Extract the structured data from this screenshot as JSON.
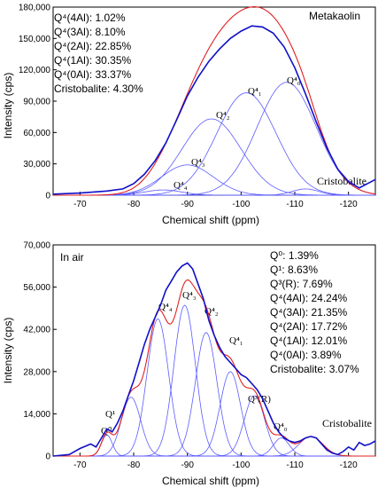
{
  "chart_data": [
    {
      "type": "line",
      "title": "Metakaolin",
      "xlabel": "Chemical shift (ppm)",
      "ylabel": "Intensity (cps)",
      "x_reversed": true,
      "xlim": [
        -65,
        -125
      ],
      "ylim": [
        0,
        180000
      ],
      "x_ticks": [
        -70,
        -80,
        -90,
        -100,
        -110,
        -120
      ],
      "x_tick_labels": [
        "-70",
        "-80",
        "-90",
        "-100",
        "-110",
        "-120"
      ],
      "y_ticks": [
        0,
        30000,
        60000,
        90000,
        120000,
        150000,
        180000
      ],
      "y_tick_labels": [
        "0",
        "30,000",
        "60,000",
        "90,000",
        "120,000",
        "150,000",
        "180,000"
      ],
      "annotations": [
        "Q⁴(4Al): 1.02%",
        "Q⁴(3Al): 8.10%",
        "Q⁴(2Al): 22.85%",
        "Q⁴(1Al): 30.35%",
        "Q⁴(0Al): 33.37%",
        "Cristobalite: 4.30%"
      ],
      "series": [
        {
          "role": "component",
          "label": "Q⁴₄",
          "center": -85.5,
          "height": 5000,
          "width": 3.5
        },
        {
          "role": "component",
          "label": "Q⁴₃",
          "center": -90.0,
          "height": 29000,
          "width": 4.8
        },
        {
          "role": "component",
          "label": "Q⁴₂",
          "center": -94.5,
          "height": 73000,
          "width": 5.5
        },
        {
          "role": "component",
          "label": "Q⁴₁",
          "center": -101.0,
          "height": 98000,
          "width": 5.5
        },
        {
          "role": "component",
          "label": "Q⁴₀",
          "center": -108.5,
          "height": 108000,
          "width": 5.5
        },
        {
          "role": "component",
          "label": "Cristobalite",
          "center": -112.0,
          "height": 6000,
          "width": 2.5
        }
      ],
      "experimental": {
        "x": [
          -65,
          -70,
          -75,
          -78,
          -80,
          -82,
          -84,
          -86,
          -88,
          -90,
          -92,
          -94,
          -96,
          -98,
          -100,
          -102,
          -104,
          -106,
          -108,
          -110,
          -112,
          -114,
          -116,
          -118,
          -120,
          -122,
          -125
        ],
        "y": [
          1000,
          2000,
          4000,
          6000,
          11000,
          20000,
          33000,
          50000,
          72000,
          95000,
          113000,
          128000,
          140000,
          150000,
          157000,
          162000,
          161000,
          155000,
          142000,
          122000,
          97000,
          70000,
          45000,
          25000,
          13000,
          7000,
          15000
        ]
      }
    },
    {
      "type": "line",
      "title": "In air",
      "xlabel": "Chemical shift (ppm)",
      "ylabel": "Intensity (cps)",
      "x_reversed": true,
      "xlim": [
        -65,
        -125
      ],
      "ylim": [
        0,
        70000
      ],
      "x_ticks": [
        -70,
        -80,
        -90,
        -100,
        -110,
        -120
      ],
      "x_tick_labels": [
        "-70",
        "-80",
        "-90",
        "-100",
        "-110",
        "-120"
      ],
      "y_ticks": [
        0,
        14000,
        28000,
        42000,
        56000,
        70000
      ],
      "y_tick_labels": [
        "0",
        "14,000",
        "28,000",
        "42,000",
        "56,000",
        "70,000"
      ],
      "annotations": [
        "Q⁰: 1.39%",
        "Q¹: 8.63%",
        "Q³(R): 7.69%",
        "Q⁴(4Al): 24.24%",
        "Q⁴(3Al): 21.35%",
        "Q⁴(2Al): 17.72%",
        "Q⁴(1Al): 12.01%",
        "Q⁴(0Al): 3.89%",
        "Cristobalite: 3.07%"
      ],
      "series": [
        {
          "role": "component",
          "label": "Q⁰",
          "center": -75.0,
          "height": 7000,
          "width": 1.0
        },
        {
          "role": "component",
          "label": "Q¹",
          "center": -79.5,
          "height": 19500,
          "width": 1.8
        },
        {
          "role": "component",
          "label": "Q⁴₄",
          "center": -84.5,
          "height": 45500,
          "width": 2.0
        },
        {
          "role": "component",
          "label": "Q⁴₃",
          "center": -89.5,
          "height": 50000,
          "width": 2.0
        },
        {
          "role": "component",
          "label": "Q⁴₂",
          "center": -93.5,
          "height": 41000,
          "width": 2.0
        },
        {
          "role": "component",
          "label": "Q⁴₁",
          "center": -98.0,
          "height": 28000,
          "width": 1.9
        },
        {
          "role": "component",
          "label": "Q³(R)",
          "center": -102.5,
          "height": 20000,
          "width": 1.9
        },
        {
          "role": "component",
          "label": "Q⁴₀",
          "center": -107.5,
          "height": 6000,
          "width": 1.5
        },
        {
          "role": "component",
          "label": "Cristobalite",
          "center": -113.0,
          "height": 6500,
          "width": 2.2
        }
      ],
      "experimental": {
        "x": [
          -65,
          -68,
          -70,
          -72,
          -73,
          -74,
          -75,
          -76,
          -77,
          -78,
          -79,
          -80,
          -81,
          -82,
          -83,
          -84,
          -85,
          -86,
          -87,
          -88,
          -89,
          -90,
          -91,
          -92,
          -93,
          -94,
          -95,
          -96,
          -97,
          -98,
          -99,
          -100,
          -101,
          -102,
          -103,
          -104,
          -105,
          -106,
          -107,
          -108,
          -109,
          -110,
          -111,
          -112,
          -113,
          -114,
          -115,
          -116,
          -117,
          -118,
          -119,
          -120,
          -121,
          -122,
          -123,
          -124,
          -125
        ],
        "y": [
          0,
          500,
          2500,
          4000,
          3000,
          6000,
          9000,
          8000,
          11000,
          15000,
          20000,
          25000,
          31000,
          37000,
          42000,
          46000,
          50000,
          55000,
          58000,
          61000,
          63000,
          64000,
          62000,
          57000,
          52000,
          45000,
          40000,
          36000,
          33000,
          31000,
          29000,
          27000,
          26000,
          24000,
          22000,
          19000,
          15000,
          11000,
          8000,
          6000,
          5000,
          4500,
          5000,
          6000,
          6500,
          6000,
          4000,
          2000,
          1000,
          500,
          1500,
          3000,
          2000,
          4500,
          3500,
          4000,
          5000
        ]
      }
    }
  ]
}
